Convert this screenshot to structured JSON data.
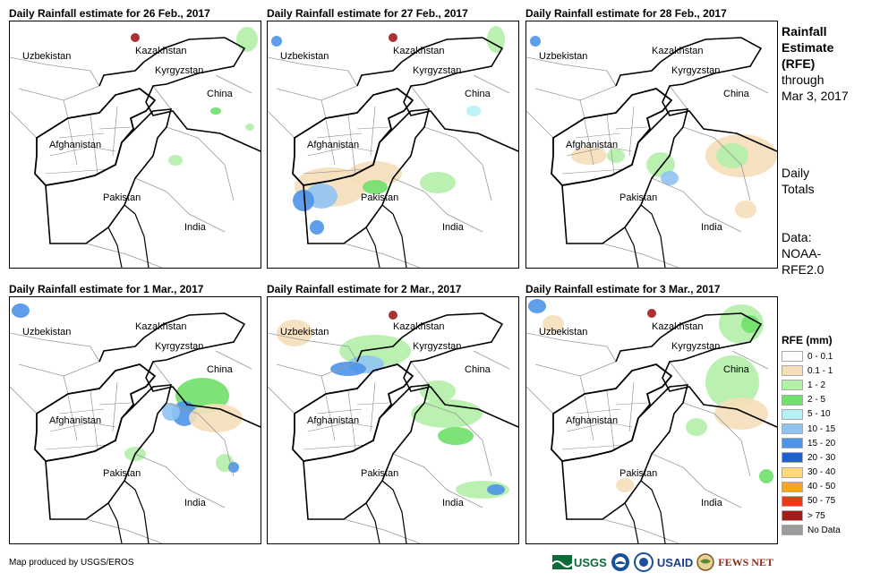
{
  "panels": [
    {
      "title": "Daily Rainfall estimate for 26 Feb., 2017"
    },
    {
      "title": "Daily Rainfall estimate for 27 Feb., 2017"
    },
    {
      "title": "Daily Rainfall estimate for 28 Feb., 2017"
    },
    {
      "title": "Daily Rainfall estimate for 1 Mar., 2017"
    },
    {
      "title": "Daily Rainfall estimate for 2 Mar., 2017"
    },
    {
      "title": "Daily Rainfall estimate for 3 Mar., 2017"
    }
  ],
  "map_labels": {
    "kazakhstan": "Kazakhstan",
    "uzbekistan": "Uzbekistan",
    "kyrgyzstan": "Kyrgyzstan",
    "china": "China",
    "afghanistan": "Afghanistan",
    "pakistan": "Pakistan",
    "india": "India"
  },
  "sidebar": {
    "title_line1": "Rainfall",
    "title_line2": "Estimate",
    "title_line3": "(RFE)",
    "title_line4": "through",
    "title_line5": "Mar 3, 2017",
    "daily_line1": "Daily",
    "daily_line2": "Totals",
    "data_line1": "Data:",
    "data_line2": "NOAA-",
    "data_line3": "RFE2.0"
  },
  "legend": {
    "title": "RFE (mm)",
    "items": [
      {
        "label": "0 - 0.1",
        "color": "#ffffff"
      },
      {
        "label": "0.1 - 1",
        "color": "#f5dfb9"
      },
      {
        "label": "1 - 2",
        "color": "#b3f0a8"
      },
      {
        "label": "2 - 5",
        "color": "#6fe069"
      },
      {
        "label": "5 - 10",
        "color": "#b6f2f5"
      },
      {
        "label": "10 - 15",
        "color": "#8fc4f2"
      },
      {
        "label": "15 - 20",
        "color": "#4d94e8"
      },
      {
        "label": "20 - 30",
        "color": "#1f5fd6"
      },
      {
        "label": "30 - 40",
        "color": "#fdd97a"
      },
      {
        "label": "40 - 50",
        "color": "#f5a623"
      },
      {
        "label": "50 - 75",
        "color": "#e83a14"
      },
      {
        "label": "> 75",
        "color": "#a21c1c"
      },
      {
        "label": "No Data",
        "color": "#9b9b9b"
      }
    ]
  },
  "credit": "Map produced by USGS/EROS",
  "logos": {
    "usgs": "USGS",
    "usaid": "USAID",
    "fewsnet": "FEWS NET"
  }
}
